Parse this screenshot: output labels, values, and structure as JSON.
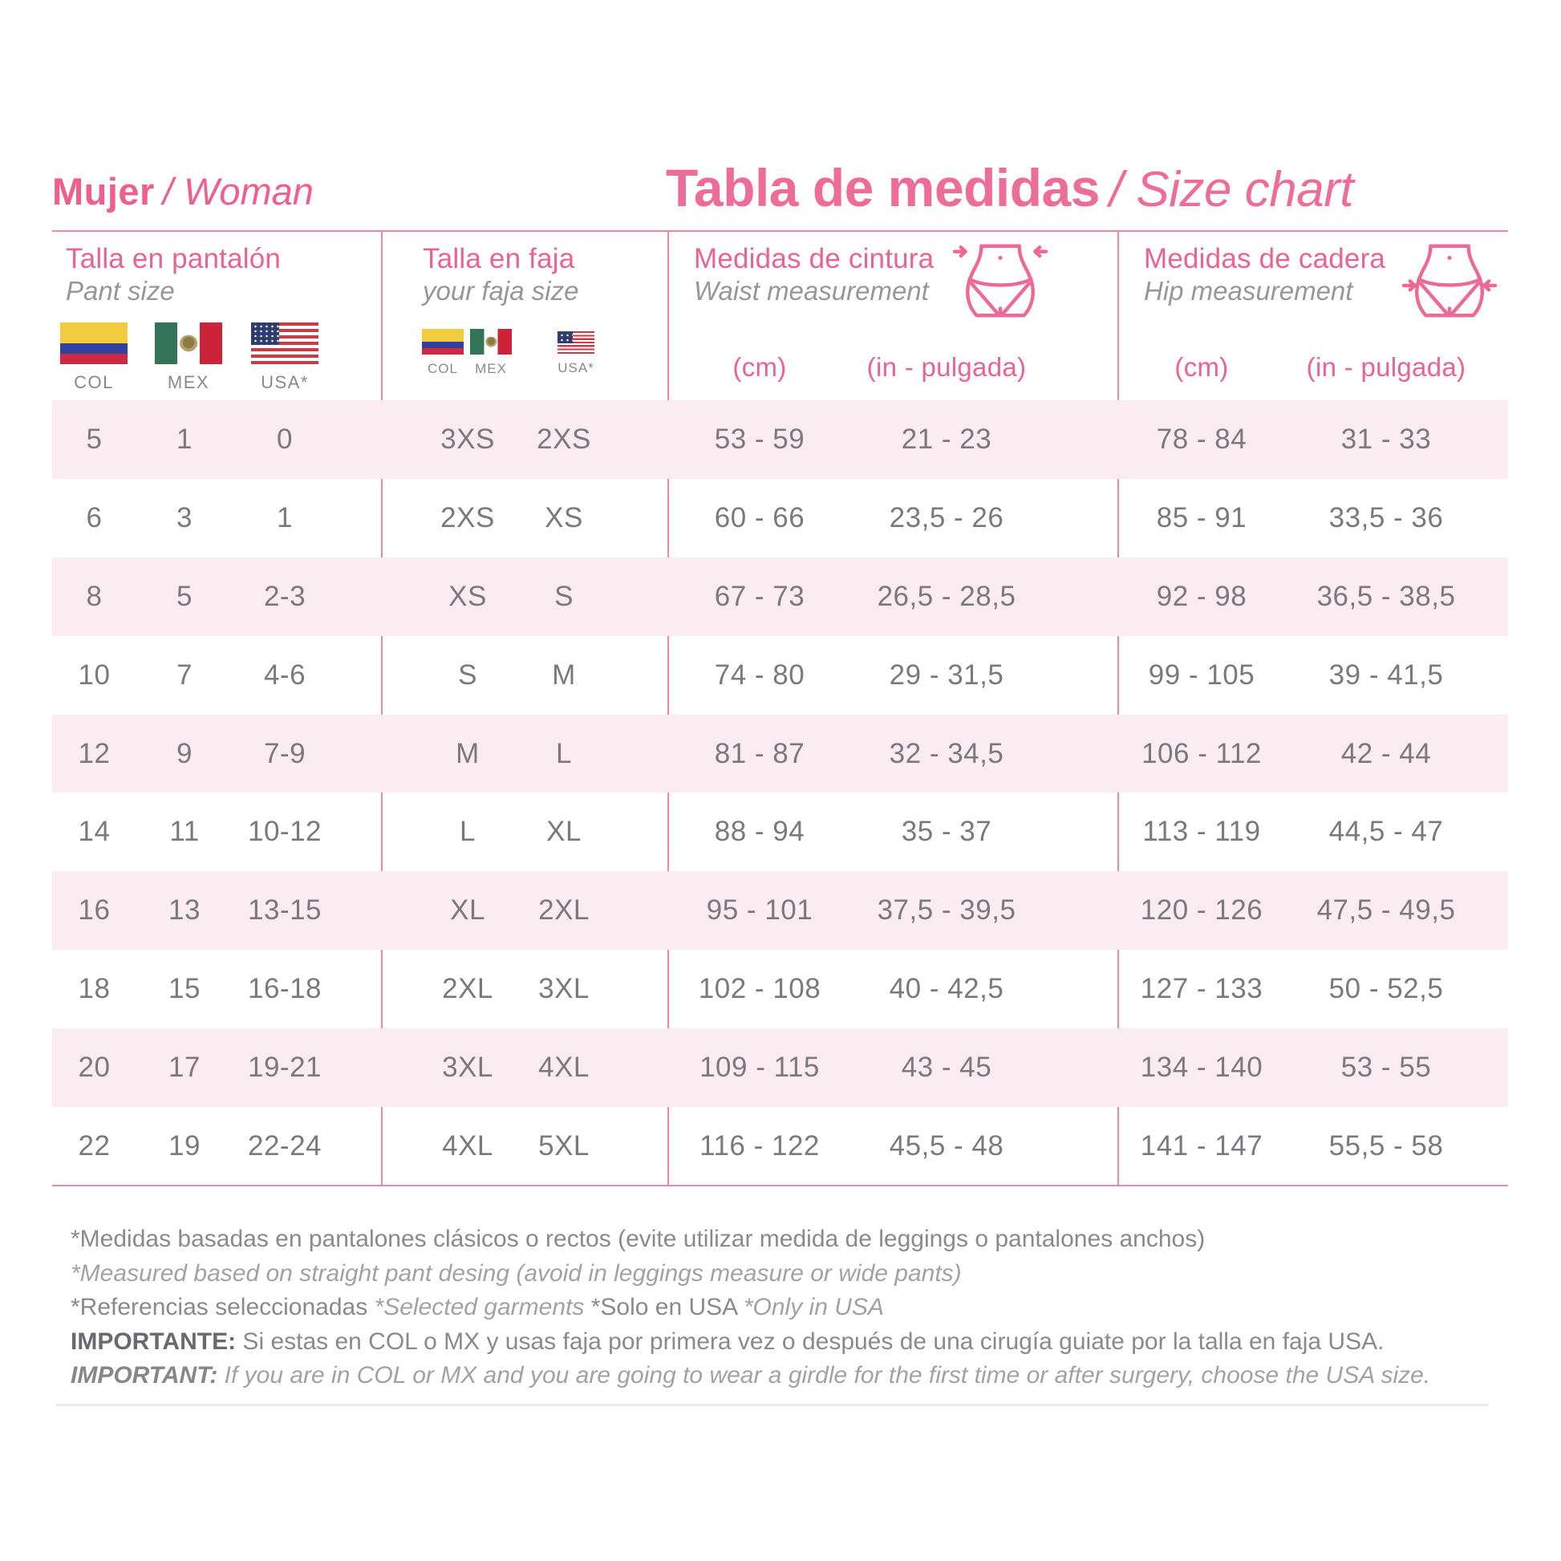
{
  "page": {
    "left_title": "Mujer",
    "left_title_en": "/ Woman",
    "main_title": "Tabla de medidas",
    "main_title_en": "/ Size chart"
  },
  "groups": {
    "pant": {
      "title": "Talla en pantalón",
      "subtitle": "Pant size",
      "flag_labels": [
        "COL",
        "MEX",
        "USA*"
      ]
    },
    "faja": {
      "title": "Talla en faja",
      "subtitle": "your faja size",
      "flag_labels": [
        "COL",
        "MEX",
        "USA*"
      ]
    },
    "waist": {
      "title": "Medidas de cintura",
      "subtitle": "Waist measurement",
      "unit_cm": "(cm)",
      "unit_in": "(in - pulgada)"
    },
    "hip": {
      "title": "Medidas de cadera",
      "subtitle": "Hip measurement",
      "unit_cm": "(cm)",
      "unit_in": "(in - pulgada)"
    }
  },
  "rows": [
    [
      "5",
      "1",
      "0",
      "3XS",
      "2XS",
      "53 - 59",
      "21 - 23",
      "78 - 84",
      "31 - 33"
    ],
    [
      "6",
      "3",
      "1",
      "2XS",
      "XS",
      "60 - 66",
      "23,5 - 26",
      "85 - 91",
      "33,5 - 36"
    ],
    [
      "8",
      "5",
      "2-3",
      "XS",
      "S",
      "67 - 73",
      "26,5 - 28,5",
      "92 - 98",
      "36,5 - 38,5"
    ],
    [
      "10",
      "7",
      "4-6",
      "S",
      "M",
      "74 - 80",
      "29 - 31,5",
      "99 - 105",
      "39 - 41,5"
    ],
    [
      "12",
      "9",
      "7-9",
      "M",
      "L",
      "81 - 87",
      "32 - 34,5",
      "106 - 112",
      "42 - 44"
    ],
    [
      "14",
      "11",
      "10-12",
      "L",
      "XL",
      "88 - 94",
      "35 - 37",
      "113 - 119",
      "44,5 - 47"
    ],
    [
      "16",
      "13",
      "13-15",
      "XL",
      "2XL",
      "95 - 101",
      "37,5 - 39,5",
      "120 - 126",
      "47,5 - 49,5"
    ],
    [
      "18",
      "15",
      "16-18",
      "2XL",
      "3XL",
      "102 - 108",
      "40 - 42,5",
      "127 - 133",
      "50 - 52,5"
    ],
    [
      "20",
      "17",
      "19-21",
      "3XL",
      "4XL",
      "109 - 115",
      "43 - 45",
      "134 - 140",
      "53 - 55"
    ],
    [
      "22",
      "19",
      "22-24",
      "4XL",
      "5XL",
      "116 - 122",
      "45,5 - 48",
      "141 - 147",
      "55,5 - 58"
    ]
  ],
  "footnotes": {
    "note1_es": "*Medidas basadas en pantalones clásicos o rectos (evite utilizar medida de leggings o pantalones anchos)",
    "note1_en": "*Measured based on straight pant desing (avoid in leggings measure or wide pants)",
    "note2_es": "*Referencias seleccionadas ",
    "note2_en": "*Selected garments ",
    "note2_es2": "*Solo en USA ",
    "note2_en2": "*Only in USA",
    "important_label_es": "IMPORTANTE:",
    "important_es": " Si estas en COL o MX y usas faja por primera vez o después de una cirugía guiate por la talla en faja USA.",
    "important_label_en": "IMPORTANT:",
    "important_en": " If you are in COL or MX and you are going to wear a girdle for the first time or after surgery, choose the USA size."
  },
  "colors": {
    "accent_pink": "#ee6d97",
    "header_pink": "#e9648f",
    "row_stripe": "#fbecf2",
    "data_text": "#7c797e"
  }
}
